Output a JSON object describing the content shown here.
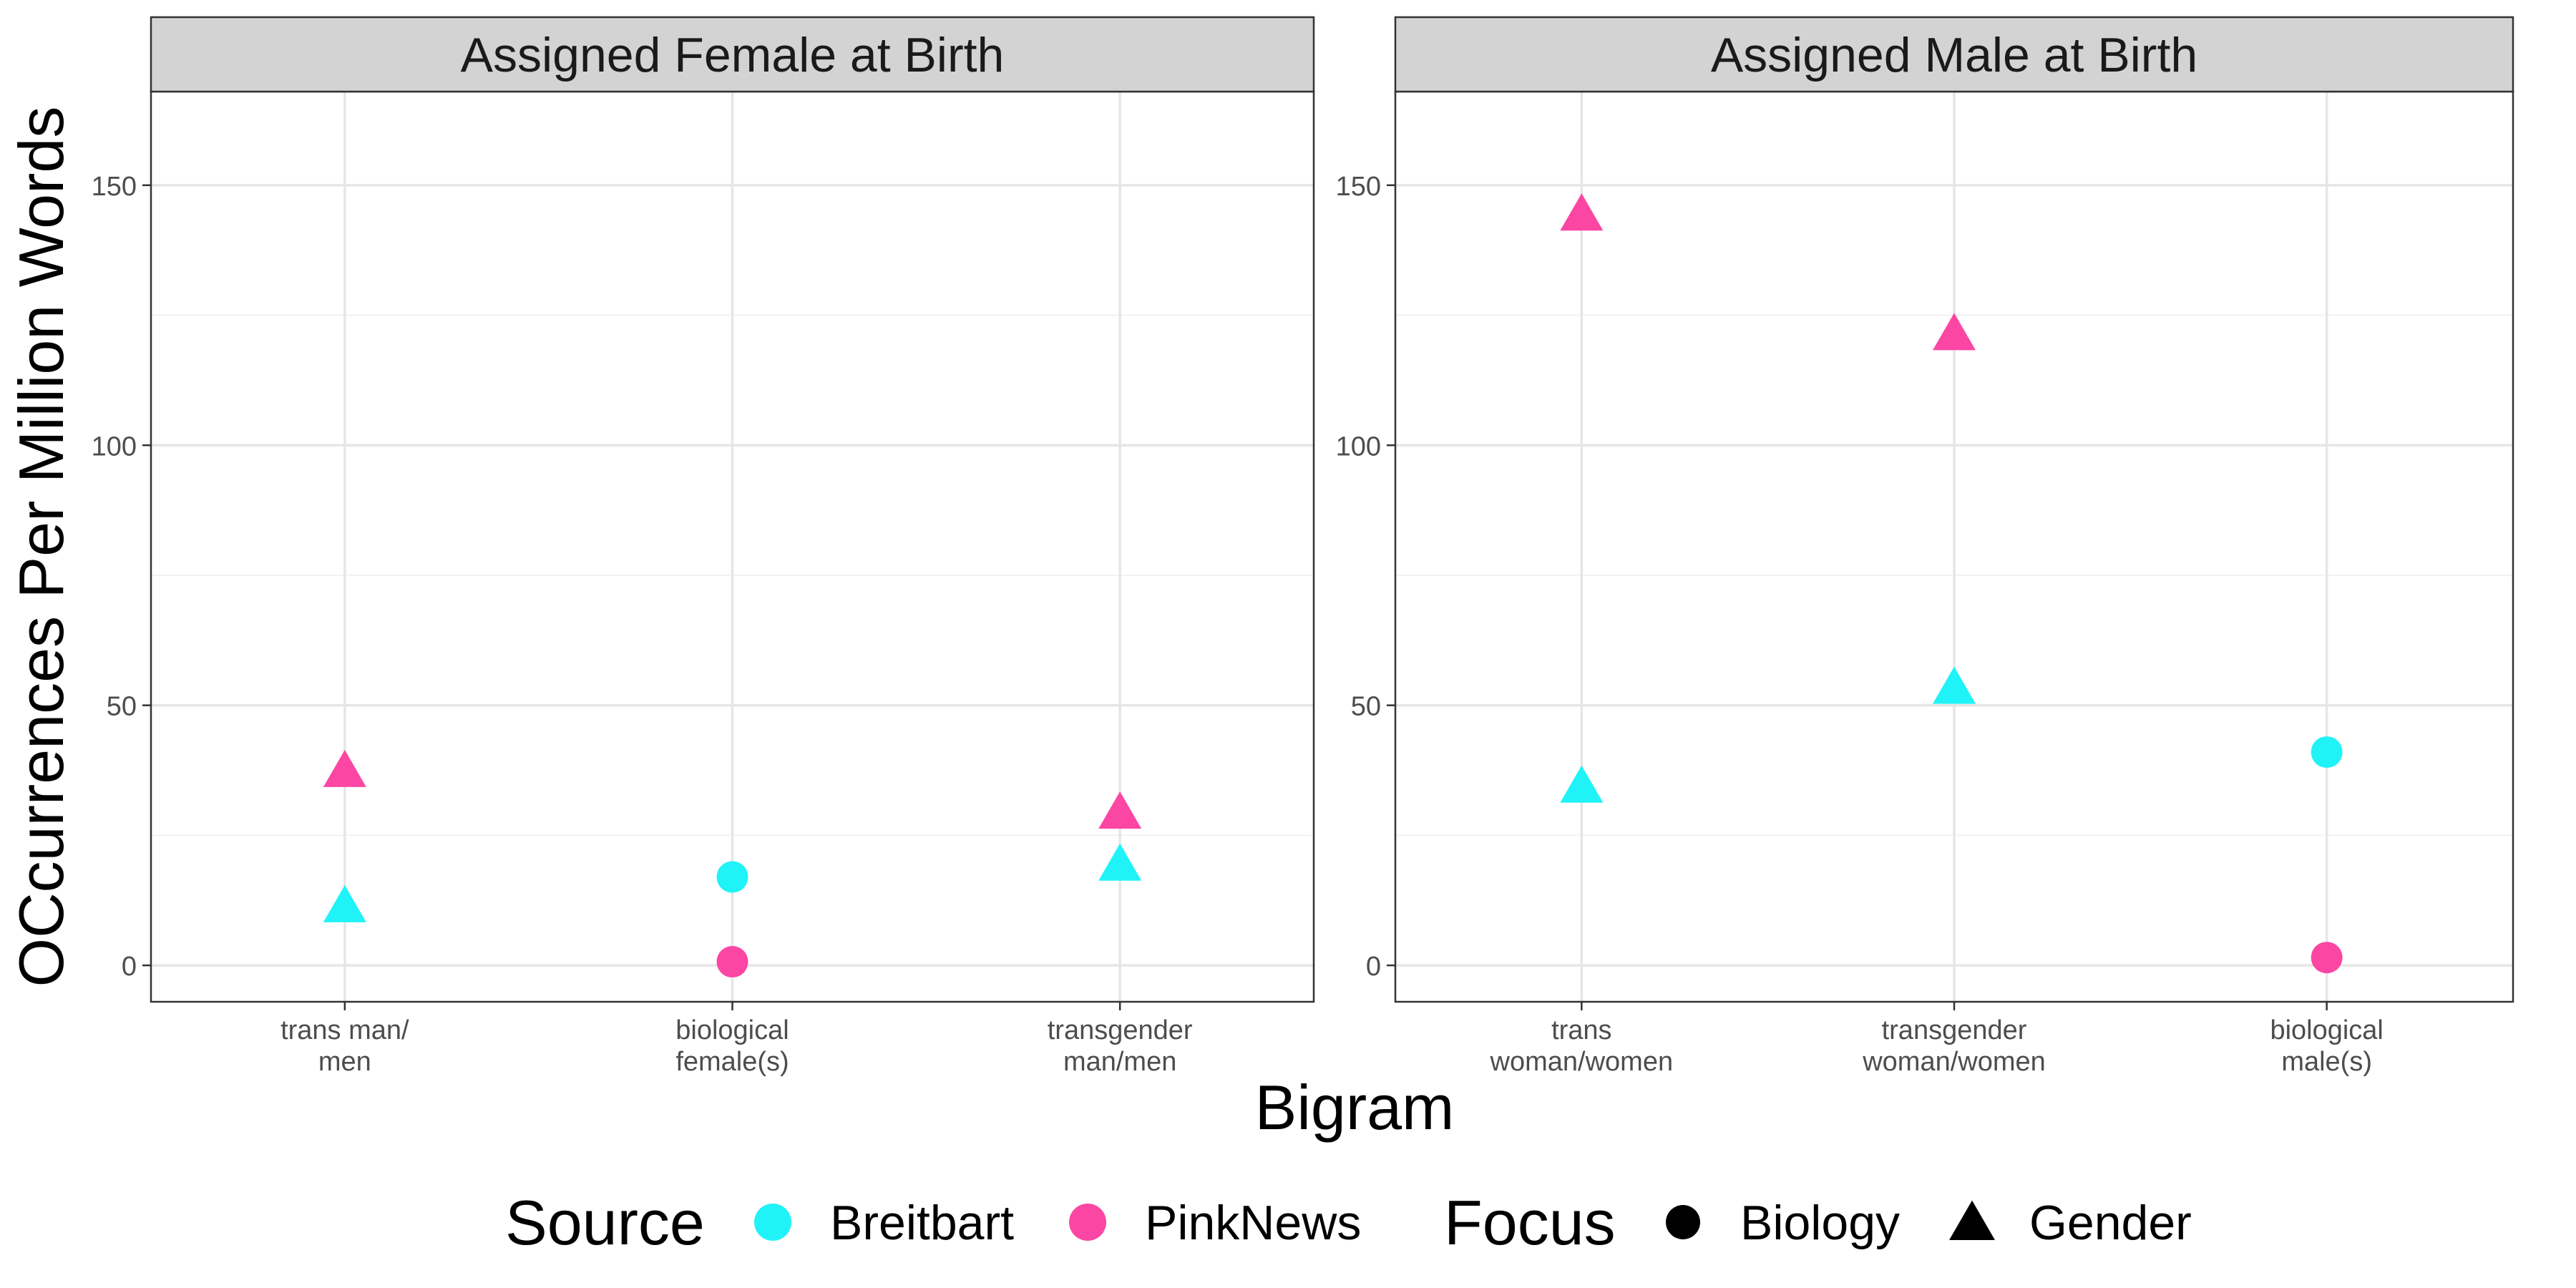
{
  "chart_data": [
    {
      "type": "scatter",
      "facet_title": "Assigned Female at Birth",
      "categories": [
        "trans man/\nmen",
        "biological\nfemale(s)",
        "transgender\nman/men"
      ],
      "points": [
        {
          "category": "trans man/\nmen",
          "source": "Breitbart",
          "focus": "Gender",
          "value": 11
        },
        {
          "category": "trans man/\nmen",
          "source": "PinkNews",
          "focus": "Gender",
          "value": 37
        },
        {
          "category": "biological\nfemale(s)",
          "source": "Breitbart",
          "focus": "Biology",
          "value": 17
        },
        {
          "category": "biological\nfemale(s)",
          "source": "PinkNews",
          "focus": "Biology",
          "value": 0.7
        },
        {
          "category": "transgender\nman/men",
          "source": "Breitbart",
          "focus": "Gender",
          "value": 19
        },
        {
          "category": "transgender\nman/men",
          "source": "PinkNews",
          "focus": "Gender",
          "value": 29
        }
      ]
    },
    {
      "type": "scatter",
      "facet_title": "Assigned Male at Birth",
      "categories": [
        "trans\nwoman/women",
        "transgender\nwoman/women",
        "biological\nmale(s)"
      ],
      "points": [
        {
          "category": "trans\nwoman/women",
          "source": "Breitbart",
          "focus": "Gender",
          "value": 34
        },
        {
          "category": "trans\nwoman/women",
          "source": "PinkNews",
          "focus": "Gender",
          "value": 144
        },
        {
          "category": "transgender\nwoman/women",
          "source": "Breitbart",
          "focus": "Gender",
          "value": 53
        },
        {
          "category": "transgender\nwoman/women",
          "source": "PinkNews",
          "focus": "Gender",
          "value": 121
        },
        {
          "category": "biological\nmale(s)",
          "source": "Breitbart",
          "focus": "Biology",
          "value": 41
        },
        {
          "category": "biological\nmale(s)",
          "source": "PinkNews",
          "focus": "Biology",
          "value": 1.5
        }
      ]
    }
  ],
  "axes": {
    "xlabel": "Bigram",
    "ylabel": "OCcurrences Per Million Words",
    "ylim": [
      -7,
      168
    ],
    "yticks": [
      0,
      50,
      100,
      150
    ],
    "yminor": [
      25,
      75,
      125
    ],
    "grid": true,
    "shared_y": true
  },
  "legend": {
    "position": "bottom",
    "source": {
      "title": "Source",
      "entries": [
        {
          "label": "Breitbart",
          "color": "#1ff3f8"
        },
        {
          "label": "PinkNews",
          "color": "#fb46a4"
        }
      ]
    },
    "focus": {
      "title": "Focus",
      "entries": [
        {
          "label": "Biology",
          "shape": "circle"
        },
        {
          "label": "Gender",
          "shape": "triangle"
        }
      ]
    }
  },
  "colors": {
    "strip_bg": "#d3d3d3",
    "grid_major": "#e6e6e6",
    "grid_minor": "#f2f2f2",
    "border": "#333333",
    "tick_text": "#4d4d4d",
    "text": "#000000"
  }
}
